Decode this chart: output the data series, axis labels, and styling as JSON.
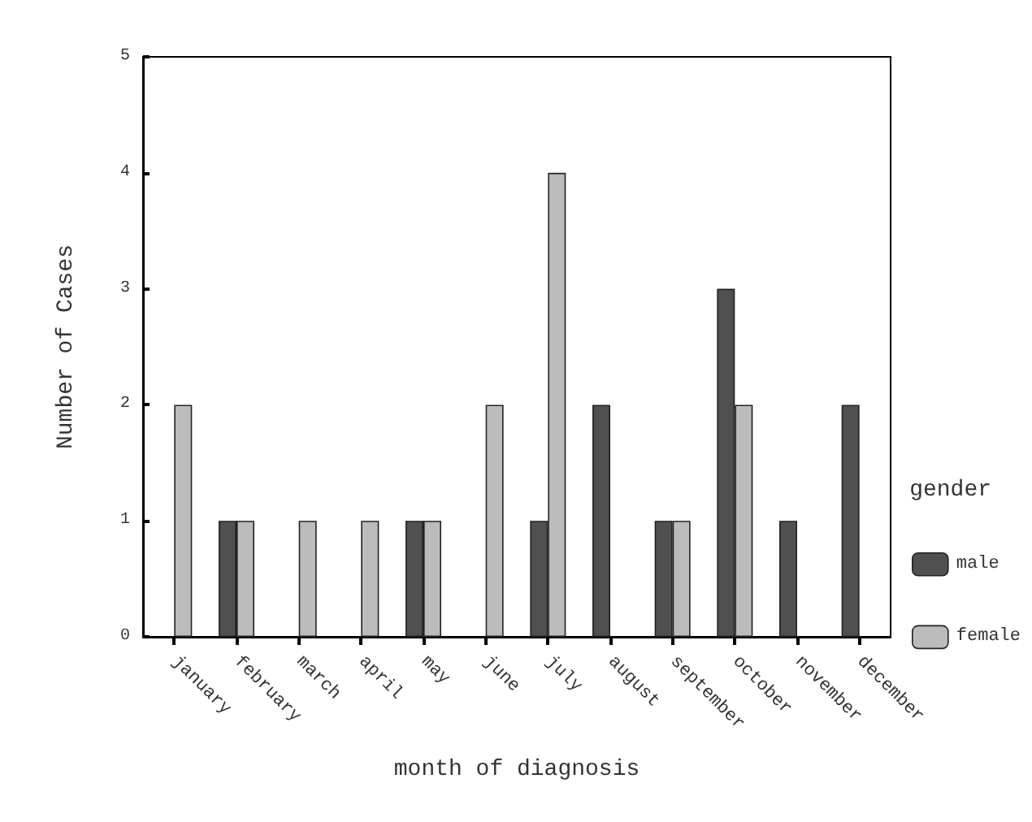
{
  "chart_data": {
    "type": "bar",
    "xlabel": "month of diagnosis",
    "ylabel": "Number of Cases",
    "legend_title": "gender",
    "categories": [
      "january",
      "february",
      "march",
      "april",
      "may",
      "june",
      "july",
      "august",
      "september",
      "october",
      "november",
      "december"
    ],
    "series": [
      {
        "name": "male",
        "color": "#505050",
        "values": [
          0,
          1,
          0,
          0,
          1,
          0,
          1,
          2,
          1,
          3,
          1,
          2
        ]
      },
      {
        "name": "female",
        "color": "#bcbcbc",
        "values": [
          2,
          1,
          1,
          1,
          1,
          2,
          4,
          0,
          1,
          2,
          0,
          0
        ]
      }
    ],
    "ylim": [
      0,
      5
    ],
    "yticks": [
      0,
      1,
      2,
      3,
      4,
      5
    ],
    "grid": false,
    "legend": "right"
  }
}
